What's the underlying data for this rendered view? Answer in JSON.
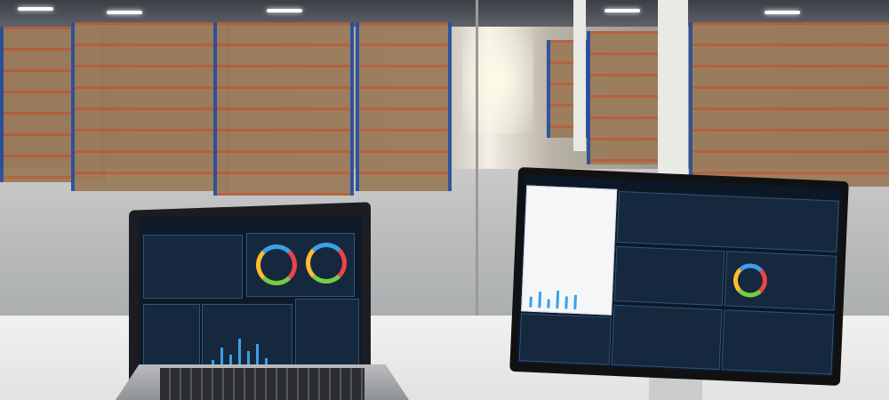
{
  "scene": "warehouse",
  "colors": {
    "rack_upright": "#2a4f9a",
    "rack_beam": "#b55f3a",
    "dashboard_bg": "#0f1a28",
    "accent": "#3aa0e8"
  },
  "devices": [
    {
      "type": "laptop",
      "content": "dashboard"
    },
    {
      "type": "monitor",
      "content": "dashboard"
    }
  ]
}
